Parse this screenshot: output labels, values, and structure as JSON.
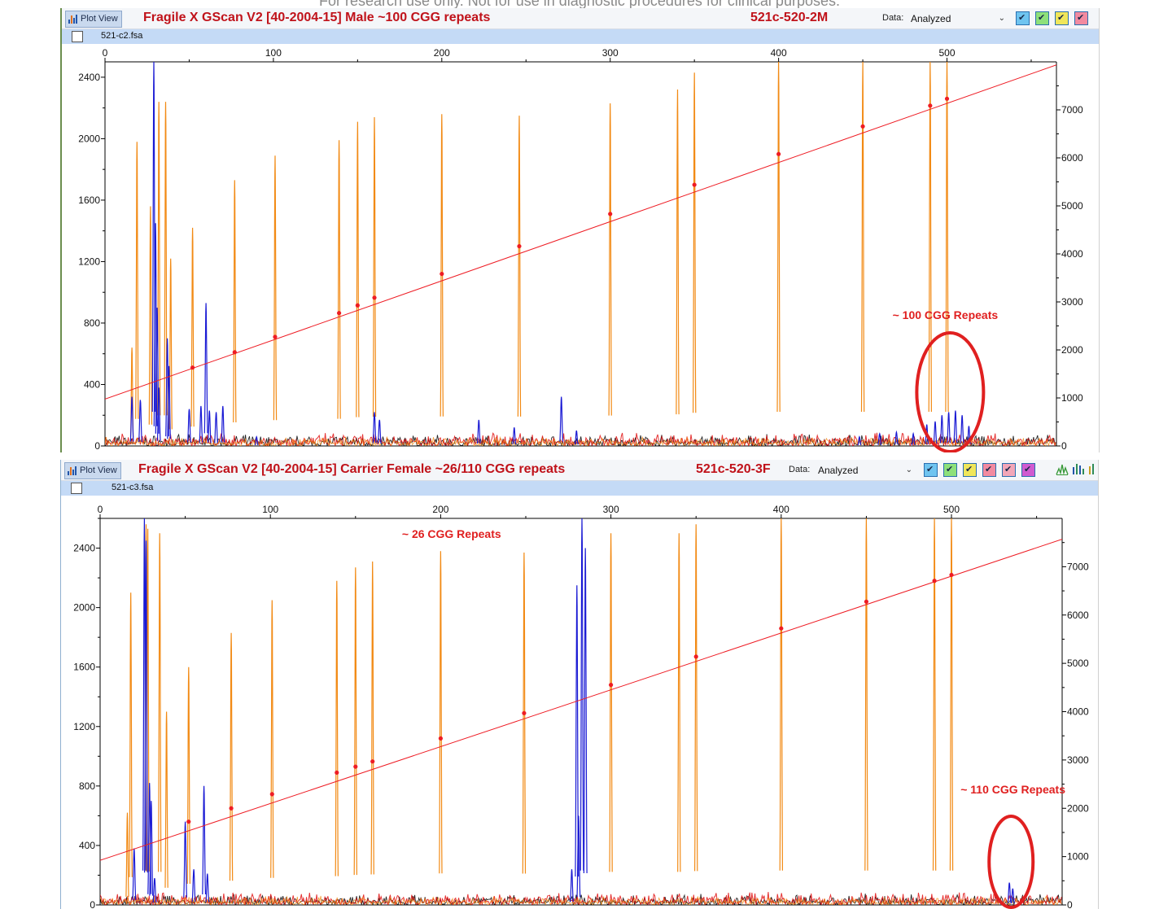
{
  "disclaimer": "For research use only. Not for use in diagnostic procedures for clinical purposes.",
  "chart_data": [
    {
      "type": "line",
      "view_label": "Plot View",
      "title": "Fragile X GScan V2 [40-2004-15] Male ~100 CGG repeats",
      "sample": "521c-520-2M",
      "data_label": "Data:",
      "data_value": "Analyzed",
      "file": "521-c2.fsa",
      "dyes": [
        "#6fc4f0",
        "#8ee07a",
        "#f0e65a",
        "#f28aa0"
      ],
      "x_ticks": [
        0,
        100,
        200,
        300,
        400,
        500
      ],
      "xlim": [
        0,
        565
      ],
      "y_ticks": [
        0,
        400,
        800,
        1200,
        1600,
        2000,
        2400
      ],
      "ylim": [
        0,
        2500
      ],
      "y2_ticks": [
        0,
        1000,
        2000,
        3000,
        4000,
        5000,
        6000,
        7000
      ],
      "y2lim": [
        0,
        8000
      ],
      "colors": {
        "size_standard": "#f28a14",
        "fam": "#1a1ad4",
        "sizing": "#ee1c24",
        "rox": "#e01010"
      },
      "size_standard_peaks": [
        [
          16,
          640
        ],
        [
          19,
          1980
        ],
        [
          27,
          1560
        ],
        [
          32,
          2240
        ],
        [
          36,
          2240
        ],
        [
          39,
          1220
        ],
        [
          52,
          1420
        ],
        [
          77,
          1730
        ],
        [
          101,
          1890
        ],
        [
          139,
          1990
        ],
        [
          150,
          2110
        ],
        [
          160,
          2140
        ],
        [
          200,
          2160
        ],
        [
          246,
          2150
        ],
        [
          300,
          2230
        ],
        [
          340,
          2320
        ],
        [
          350,
          2430
        ],
        [
          400,
          2500
        ],
        [
          450,
          2500
        ],
        [
          490,
          2500
        ],
        [
          500,
          2500
        ]
      ],
      "fam_peaks": [
        [
          16,
          320
        ],
        [
          21,
          300
        ],
        [
          29,
          2500
        ],
        [
          30,
          1450
        ],
        [
          31,
          900
        ],
        [
          32,
          380
        ],
        [
          37,
          700
        ],
        [
          38,
          520
        ],
        [
          50,
          240
        ],
        [
          57,
          260
        ],
        [
          60,
          930
        ],
        [
          62,
          230
        ],
        [
          66,
          220
        ],
        [
          70,
          260
        ],
        [
          90,
          60
        ],
        [
          160,
          220
        ],
        [
          163,
          170
        ],
        [
          222,
          170
        ],
        [
          243,
          120
        ],
        [
          271,
          320
        ],
        [
          280,
          100
        ],
        [
          448,
          60
        ],
        [
          460,
          80
        ],
        [
          470,
          90
        ],
        [
          480,
          80
        ],
        [
          488,
          140
        ],
        [
          493,
          160
        ],
        [
          497,
          200
        ],
        [
          501,
          220
        ],
        [
          505,
          230
        ],
        [
          509,
          200
        ],
        [
          513,
          130
        ]
      ],
      "sizing_points": [
        [
          52,
          510
        ],
        [
          77,
          610
        ],
        [
          101,
          710
        ],
        [
          139,
          865
        ],
        [
          150,
          915
        ],
        [
          160,
          965
        ],
        [
          200,
          1120
        ],
        [
          246,
          1300
        ],
        [
          300,
          1510
        ],
        [
          350,
          1700
        ],
        [
          400,
          1900
        ],
        [
          450,
          2080
        ],
        [
          490,
          2215
        ],
        [
          500,
          2260
        ]
      ],
      "sizing_line": [
        [
          0,
          305
        ],
        [
          565,
          2480
        ]
      ],
      "annotation": {
        "label": "~ 100 CGG Repeats",
        "x": 498,
        "y": 135
      }
    },
    {
      "type": "line",
      "view_label": "Plot View",
      "title": "Fragile X GScan V2 [40-2004-15] Carrier Female ~26/110 CGG repeats",
      "sample": "521c-520-3F",
      "data_label": "Data:",
      "data_value": "Analyzed",
      "file": "521-c3.fsa",
      "dyes": [
        "#6fc4f0",
        "#8ee07a",
        "#f0e65a",
        "#f28aa0",
        "#f2a6b8",
        "#d05ad0"
      ],
      "x_ticks": [
        0,
        100,
        200,
        300,
        400,
        500
      ],
      "xlim": [
        0,
        565
      ],
      "y_ticks": [
        0,
        400,
        800,
        1200,
        1600,
        2000,
        2400
      ],
      "ylim": [
        0,
        2600
      ],
      "y2_ticks": [
        0,
        1000,
        2000,
        3000,
        4000,
        5000,
        6000,
        7000
      ],
      "y2lim": [
        0,
        8000
      ],
      "colors": {
        "size_standard": "#f28a14",
        "fam": "#1a1ad4",
        "sizing": "#ee1c24",
        "rox": "#e01010"
      },
      "size_standard_peaks": [
        [
          16,
          620
        ],
        [
          18,
          2100
        ],
        [
          27,
          2560
        ],
        [
          28,
          2530
        ],
        [
          35,
          2500
        ],
        [
          39,
          1300
        ],
        [
          52,
          1600
        ],
        [
          77,
          1830
        ],
        [
          101,
          2050
        ],
        [
          139,
          2180
        ],
        [
          150,
          2270
        ],
        [
          160,
          2310
        ],
        [
          200,
          2380
        ],
        [
          249,
          2370
        ],
        [
          300,
          2500
        ],
        [
          340,
          2500
        ],
        [
          350,
          2560
        ],
        [
          400,
          2600
        ],
        [
          450,
          2600
        ],
        [
          490,
          2600
        ],
        [
          500,
          2600
        ]
      ],
      "fam_peaks": [
        [
          20,
          380
        ],
        [
          26,
          2600
        ],
        [
          27,
          2450
        ],
        [
          29,
          820
        ],
        [
          30,
          700
        ],
        [
          32,
          180
        ],
        [
          50,
          560
        ],
        [
          55,
          240
        ],
        [
          61,
          800
        ],
        [
          63,
          210
        ],
        [
          280,
          2150
        ],
        [
          283,
          2600
        ],
        [
          285,
          2400
        ],
        [
          277,
          240
        ],
        [
          281,
          600
        ],
        [
          534,
          150
        ],
        [
          536,
          110
        ]
      ],
      "sizing_points": [
        [
          52,
          560
        ],
        [
          77,
          650
        ],
        [
          101,
          745
        ],
        [
          139,
          890
        ],
        [
          150,
          930
        ],
        [
          160,
          965
        ],
        [
          200,
          1120
        ],
        [
          249,
          1290
        ],
        [
          300,
          1480
        ],
        [
          350,
          1670
        ],
        [
          400,
          1860
        ],
        [
          450,
          2040
        ],
        [
          490,
          2180
        ],
        [
          500,
          2220
        ]
      ],
      "sizing_line": [
        [
          0,
          300
        ],
        [
          565,
          2460
        ]
      ],
      "annotations": [
        {
          "label": "~ 26 CGG Repeats",
          "x": 204,
          "y": 2460
        },
        {
          "label": "~ 110 CGG Repeats",
          "x": 500,
          "y": 740
        }
      ]
    }
  ]
}
